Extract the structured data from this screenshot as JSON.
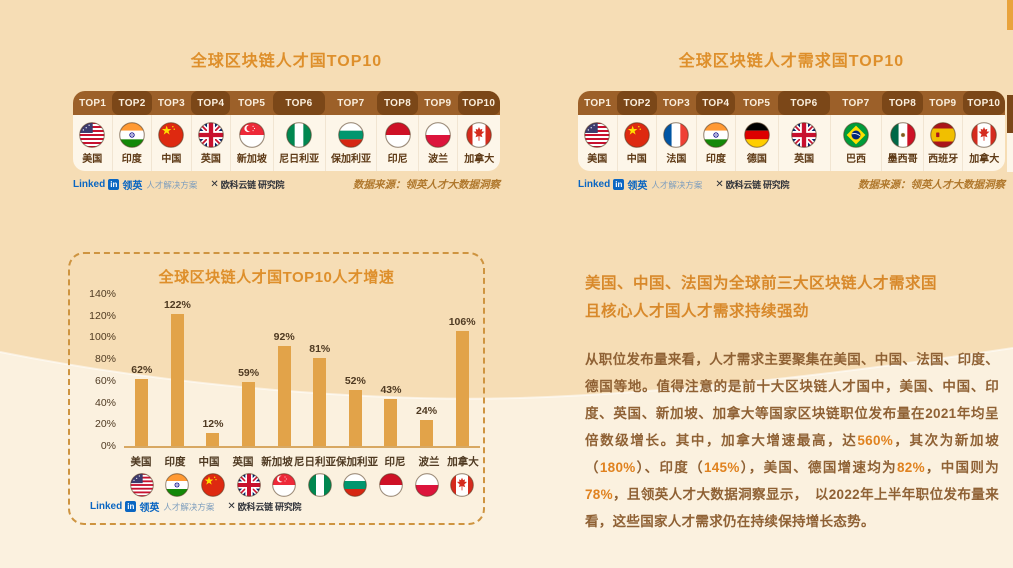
{
  "theme": {
    "bg_top": "#F6DDB5",
    "bg_bottom": "#FBF1DF",
    "accent_orange": "#DE8F2B",
    "bar_color": "#E2A349",
    "header_light_brown": "#9C6029",
    "header_dark_brown": "#7B4718",
    "card_cream": "#FDF6E9",
    "body_text_brown": "#8F6134",
    "highlight_orange": "#E0821F",
    "linkedin_blue": "#0A66C2",
    "source_note_brown": "#B0782D"
  },
  "logos": {
    "linkedin_word": "Linked",
    "linkedin_badge": "in",
    "linkedin_cn": "领英",
    "linkedin_sub": "人才解决方案",
    "partner_mark": "✕",
    "partner_name": "欧科云链",
    "partner_suffix": "研究院"
  },
  "panels": {
    "talent": {
      "title": "全球区块链人才国TOP10",
      "ranks": [
        "TOP1",
        "TOP2",
        "TOP3",
        "TOP4",
        "TOP5",
        "TOP6",
        "TOP7",
        "TOP8",
        "TOP9",
        "TOP10"
      ],
      "countries": [
        {
          "name": "美国",
          "flag": "us"
        },
        {
          "name": "印度",
          "flag": "in"
        },
        {
          "name": "中国",
          "flag": "cn"
        },
        {
          "name": "英国",
          "flag": "gb"
        },
        {
          "name": "新加坡",
          "flag": "sg"
        },
        {
          "name": "尼日利亚",
          "flag": "ng"
        },
        {
          "name": "保加利亚",
          "flag": "bg"
        },
        {
          "name": "印尼",
          "flag": "id"
        },
        {
          "name": "波兰",
          "flag": "pl"
        },
        {
          "name": "加拿大",
          "flag": "ca"
        }
      ],
      "source": "数据来源：领英人才大数据洞察"
    },
    "demand": {
      "title": "全球区块链人才需求国TOP10",
      "ranks": [
        "TOP1",
        "TOP2",
        "TOP3",
        "TOP4",
        "TOP5",
        "TOP6",
        "TOP7",
        "TOP8",
        "TOP9",
        "TOP10"
      ],
      "countries": [
        {
          "name": "美国",
          "flag": "us"
        },
        {
          "name": "中国",
          "flag": "cn"
        },
        {
          "name": "法国",
          "flag": "fr"
        },
        {
          "name": "印度",
          "flag": "in"
        },
        {
          "name": "德国",
          "flag": "de"
        },
        {
          "name": "英国",
          "flag": "gb"
        },
        {
          "name": "巴西",
          "flag": "br"
        },
        {
          "name": "墨西哥",
          "flag": "mx"
        },
        {
          "name": "西班牙",
          "flag": "es"
        },
        {
          "name": "加拿大",
          "flag": "ca"
        }
      ],
      "source": "数据来源：领英人才大数据洞察"
    }
  },
  "chart_data": {
    "type": "bar",
    "title": "全球区块链人才国TOP10人才增速",
    "categories": [
      "美国",
      "印度",
      "中国",
      "英国",
      "新加坡",
      "尼日利亚",
      "保加利亚",
      "印尼",
      "波兰",
      "加拿大"
    ],
    "values": [
      62,
      122,
      12,
      59,
      92,
      81,
      52,
      43,
      24,
      106
    ],
    "value_labels": [
      "62%",
      "122%",
      "12%",
      "59%",
      "92%",
      "81%",
      "52%",
      "43%",
      "24%",
      "106%"
    ],
    "flags": [
      "us",
      "in",
      "cn",
      "gb",
      "sg",
      "ng",
      "bg",
      "id",
      "pl",
      "ca"
    ],
    "unit": "%",
    "xlabel": "",
    "ylabel": "",
    "ylim": [
      0,
      140
    ],
    "yticks": [
      0,
      20,
      40,
      60,
      80,
      100,
      120,
      140
    ],
    "ytick_labels": [
      "0%",
      "20%",
      "40%",
      "60%",
      "80%",
      "100%",
      "120%",
      "140%"
    ],
    "grid": false,
    "legend": false,
    "bar_color": "#E2A349"
  },
  "article": {
    "heading_lines": [
      "美国、中国、法国为全球前三大区块链人才需求国",
      "且核心人才国人才需求持续强劲"
    ],
    "paragraph": [
      {
        "text": "从职位发布量来看，人才需求主要聚集在美国、中国、法国、印度、德国等地。值得注意的是前十大区块链人才国中，美国、中国、印度、英国、新加坡、加拿大等国家区块链职位发布量在2021年均呈倍数级增长。其中，加拿大增速最高，达",
        "highlight": false
      },
      {
        "text": "560%",
        "highlight": true
      },
      {
        "text": "，其次为新加坡（",
        "highlight": false
      },
      {
        "text": "180%",
        "highlight": true
      },
      {
        "text": "）、印度（",
        "highlight": false
      },
      {
        "text": "145%",
        "highlight": true
      },
      {
        "text": "），美国、德国增速均为",
        "highlight": false
      },
      {
        "text": "82%",
        "highlight": true
      },
      {
        "text": "，中国则为",
        "highlight": false
      },
      {
        "text": "78%",
        "highlight": true
      },
      {
        "text": "，且领英人才大数据洞察显示，　以2022年上半年职位发布量来看，这些国家人才需求仍在持续保持增长态势。",
        "highlight": false
      }
    ]
  }
}
